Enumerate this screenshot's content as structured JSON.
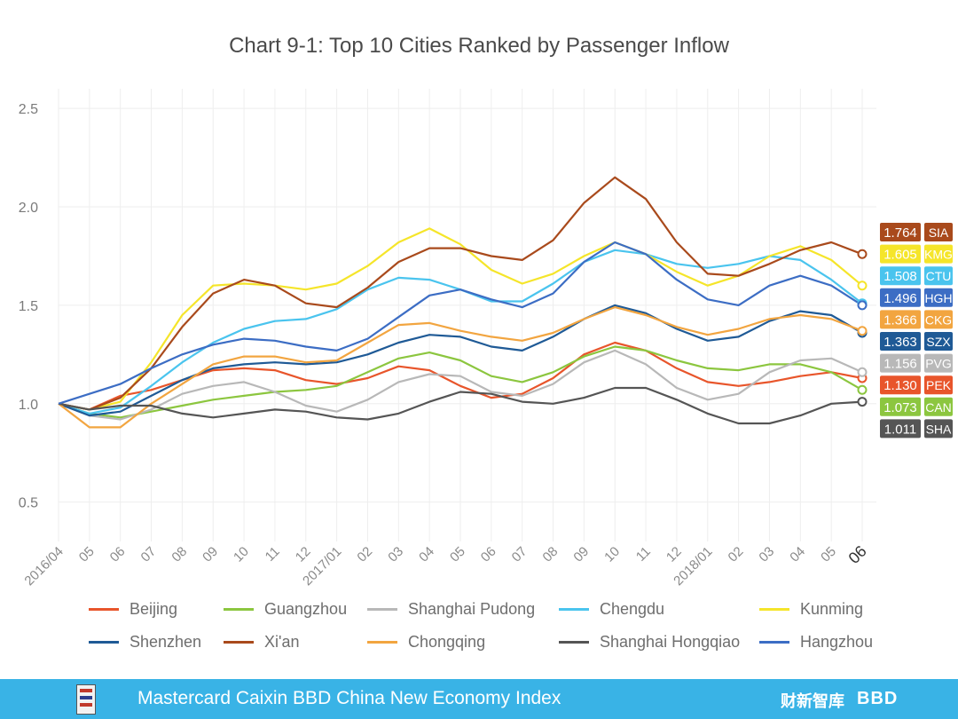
{
  "chart_data": {
    "type": "line",
    "title": "Chart 9-1: Top 10 Cities Ranked by Passenger Inflow",
    "xlabel": "",
    "ylabel": "",
    "ylim": [
      0.3,
      2.6
    ],
    "y_ticks": [
      "0.5",
      "1.0",
      "1.5",
      "2.0",
      "2.5"
    ],
    "y_tick_values": [
      0.5,
      1.0,
      1.5,
      2.0,
      2.5
    ],
    "categories": [
      "2016/04",
      "05",
      "06",
      "07",
      "08",
      "09",
      "10",
      "11",
      "12",
      "2017/01",
      "02",
      "03",
      "04",
      "05",
      "06",
      "07",
      "08",
      "09",
      "10",
      "11",
      "12",
      "2018/01",
      "02",
      "03",
      "04",
      "05",
      "06"
    ],
    "grid": true,
    "series": [
      {
        "name": "Beijing",
        "code": "PEK",
        "end_label": "1.130",
        "color": "#e8552b",
        "values": [
          1.0,
          0.97,
          1.04,
          1.07,
          1.12,
          1.17,
          1.18,
          1.17,
          1.12,
          1.1,
          1.13,
          1.19,
          1.17,
          1.09,
          1.03,
          1.05,
          1.13,
          1.25,
          1.31,
          1.27,
          1.18,
          1.11,
          1.09,
          1.11,
          1.14,
          1.16,
          1.13
        ]
      },
      {
        "name": "Guangzhou",
        "code": "CAN",
        "end_label": "1.073",
        "color": "#8cc63f",
        "values": [
          1.0,
          0.95,
          0.93,
          0.96,
          0.99,
          1.02,
          1.04,
          1.06,
          1.07,
          1.09,
          1.16,
          1.23,
          1.26,
          1.22,
          1.14,
          1.11,
          1.16,
          1.24,
          1.29,
          1.27,
          1.22,
          1.18,
          1.17,
          1.2,
          1.2,
          1.16,
          1.07
        ]
      },
      {
        "name": "Shanghai Pudong",
        "code": "PVG",
        "end_label": "1.156",
        "color": "#b8b8b8",
        "values": [
          1.0,
          0.94,
          0.92,
          0.97,
          1.05,
          1.09,
          1.11,
          1.06,
          0.99,
          0.96,
          1.02,
          1.11,
          1.15,
          1.14,
          1.06,
          1.04,
          1.1,
          1.21,
          1.27,
          1.2,
          1.08,
          1.02,
          1.05,
          1.16,
          1.22,
          1.23,
          1.16
        ]
      },
      {
        "name": "Chengdu",
        "code": "CTU",
        "end_label": "1.508",
        "color": "#4ac4ee",
        "values": [
          1.0,
          0.95,
          0.98,
          1.09,
          1.21,
          1.31,
          1.38,
          1.42,
          1.43,
          1.48,
          1.58,
          1.64,
          1.63,
          1.58,
          1.52,
          1.52,
          1.61,
          1.72,
          1.78,
          1.76,
          1.71,
          1.69,
          1.71,
          1.75,
          1.73,
          1.63,
          1.51
        ]
      },
      {
        "name": "Kunming",
        "code": "KMG",
        "end_label": "1.605",
        "color": "#f5e52a",
        "values": [
          1.0,
          0.97,
          1.01,
          1.21,
          1.45,
          1.6,
          1.61,
          1.6,
          1.58,
          1.61,
          1.7,
          1.82,
          1.89,
          1.81,
          1.68,
          1.61,
          1.66,
          1.75,
          1.82,
          1.76,
          1.67,
          1.6,
          1.65,
          1.75,
          1.8,
          1.73,
          1.6
        ]
      },
      {
        "name": "Shenzhen",
        "code": "SZX",
        "end_label": "1.363",
        "color": "#1f5a96",
        "values": [
          1.0,
          0.94,
          0.96,
          1.04,
          1.12,
          1.18,
          1.2,
          1.21,
          1.2,
          1.21,
          1.25,
          1.31,
          1.35,
          1.34,
          1.29,
          1.27,
          1.34,
          1.43,
          1.5,
          1.46,
          1.38,
          1.32,
          1.34,
          1.42,
          1.47,
          1.45,
          1.36
        ]
      },
      {
        "name": "Xi'an",
        "code": "SIA",
        "end_label": "1.764",
        "color": "#a94a1c",
        "values": [
          1.0,
          0.97,
          1.03,
          1.18,
          1.39,
          1.56,
          1.63,
          1.6,
          1.51,
          1.49,
          1.59,
          1.72,
          1.79,
          1.79,
          1.75,
          1.73,
          1.83,
          2.02,
          2.15,
          2.04,
          1.82,
          1.66,
          1.65,
          1.71,
          1.78,
          1.82,
          1.76
        ]
      },
      {
        "name": "Chongqing",
        "code": "CKG",
        "end_label": "1.366",
        "color": "#f2a540",
        "values": [
          1.0,
          0.88,
          0.88,
          1.0,
          1.1,
          1.2,
          1.24,
          1.24,
          1.21,
          1.22,
          1.31,
          1.4,
          1.41,
          1.37,
          1.34,
          1.32,
          1.36,
          1.43,
          1.49,
          1.45,
          1.39,
          1.35,
          1.38,
          1.43,
          1.45,
          1.43,
          1.37
        ]
      },
      {
        "name": "Shanghai Hongqiao",
        "code": "SHA",
        "end_label": "1.011",
        "color": "#555555",
        "values": [
          1.0,
          0.97,
          0.99,
          0.99,
          0.95,
          0.93,
          0.95,
          0.97,
          0.96,
          0.93,
          0.92,
          0.95,
          1.01,
          1.06,
          1.05,
          1.01,
          1.0,
          1.03,
          1.08,
          1.08,
          1.02,
          0.95,
          0.9,
          0.9,
          0.94,
          1.0,
          1.01
        ]
      },
      {
        "name": "Hangzhou",
        "code": "HGH",
        "end_label": "1.496",
        "color": "#3c6dc4",
        "values": [
          1.0,
          1.05,
          1.1,
          1.18,
          1.25,
          1.3,
          1.33,
          1.32,
          1.29,
          1.27,
          1.33,
          1.44,
          1.55,
          1.58,
          1.53,
          1.49,
          1.56,
          1.72,
          1.82,
          1.76,
          1.63,
          1.53,
          1.5,
          1.6,
          1.65,
          1.6,
          1.5
        ]
      }
    ]
  },
  "footer": {
    "text": "Mastercard Caixin BBD China New Economy Index",
    "brand_left": "财新智库",
    "brand_right": "BBD"
  }
}
